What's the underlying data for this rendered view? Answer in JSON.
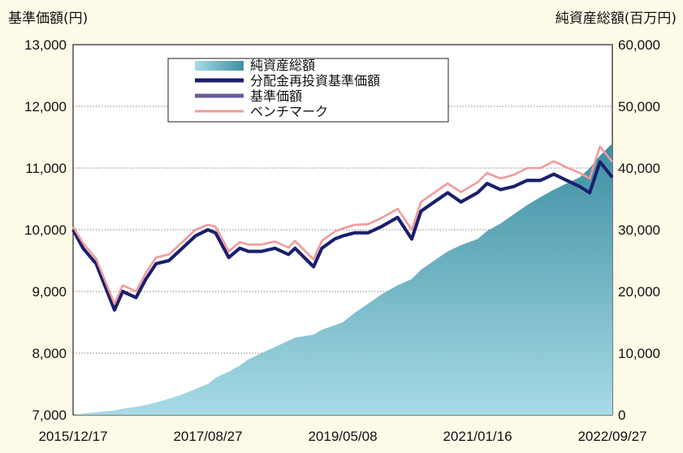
{
  "chart_data": {
    "type": "line",
    "left_axis_title": "基準価額(円)",
    "right_axis_title": "純資産総額(百万円)",
    "x_tick_labels": [
      "2015/12/17",
      "2017/08/27",
      "2019/05/08",
      "2021/01/16",
      "2022/09/27"
    ],
    "y_left": {
      "ylim": [
        7000,
        13000
      ],
      "ticks": [
        "7,000",
        "8,000",
        "9,000",
        "10,000",
        "11,000",
        "12,000",
        "13,000"
      ]
    },
    "y_right": {
      "ylim": [
        0,
        60000
      ],
      "ticks": [
        "0",
        "10,000",
        "20,000",
        "30,000",
        "40,000",
        "50,000",
        "60,000"
      ]
    },
    "grid": "horizontal dotted",
    "legend": {
      "position": "top-center",
      "entries": [
        "純資産総額",
        "分配金再投資基準価額",
        "基準価額",
        "ベンチマーク"
      ]
    },
    "colors": {
      "net_assets_top": "#3d8ea3",
      "net_assets_bottom": "#a7dbe6",
      "reinvested": "#1a1f6e",
      "nav": "#6a5a9a",
      "benchmark": "#f29a9a",
      "background": "#fdfae8",
      "plot_background": "#ffffff"
    },
    "x": [
      "2015/12/17",
      "2016/02/01",
      "2016/04/01",
      "2016/06/24",
      "2016/08/01",
      "2016/10/01",
      "2016/11/15",
      "2017/01/01",
      "2017/03/01",
      "2017/05/01",
      "2017/07/01",
      "2017/08/27",
      "2017/10/01",
      "2017/12/01",
      "2018/01/20",
      "2018/03/01",
      "2018/05/01",
      "2018/07/01",
      "2018/09/01",
      "2018/10/01",
      "2018/12/25",
      "2019/02/01",
      "2019/04/01",
      "2019/05/08",
      "2019/07/01",
      "2019/09/01",
      "2019/11/01",
      "2020/01/15",
      "2020/03/20",
      "2020/05/01",
      "2020/07/01",
      "2020/09/01",
      "2020/11/01",
      "2021/01/16",
      "2021/03/01",
      "2021/05/01",
      "2021/07/01",
      "2021/09/01",
      "2021/11/01",
      "2022/01/01",
      "2022/03/01",
      "2022/05/01",
      "2022/06/15",
      "2022/08/01",
      "2022/09/27"
    ],
    "series": [
      {
        "name": "基準価額",
        "axis": "left",
        "values": [
          10000,
          9700,
          9450,
          8700,
          9000,
          8900,
          9200,
          9450,
          9500,
          9700,
          9900,
          10000,
          9950,
          9550,
          9700,
          9650,
          9650,
          9700,
          9600,
          9700,
          9400,
          9700,
          9850,
          9900,
          9950,
          9950,
          10050,
          10200,
          9850,
          10300,
          10450,
          10600,
          10450,
          10600,
          10750,
          10650,
          10700,
          10800,
          10800,
          10900,
          10800,
          10700,
          10600,
          11100,
          10850
        ]
      },
      {
        "name": "分配金再投資基準価額",
        "axis": "left",
        "values": [
          10000,
          9700,
          9450,
          8700,
          9000,
          8900,
          9200,
          9450,
          9500,
          9700,
          9900,
          10000,
          9950,
          9550,
          9700,
          9650,
          9650,
          9700,
          9600,
          9700,
          9400,
          9700,
          9850,
          9900,
          9950,
          9950,
          10050,
          10200,
          9850,
          10300,
          10450,
          10600,
          10450,
          10600,
          10750,
          10650,
          10700,
          10800,
          10800,
          10900,
          10800,
          10700,
          10600,
          11100,
          10850
        ]
      },
      {
        "name": "ベンチマーク",
        "axis": "left",
        "values": [
          10050,
          9780,
          9530,
          8800,
          9100,
          9000,
          9300,
          9550,
          9600,
          9800,
          10000,
          10080,
          10050,
          9650,
          9800,
          9760,
          9760,
          9810,
          9710,
          9820,
          9520,
          9820,
          9970,
          10020,
          10080,
          10090,
          10190,
          10340,
          10000,
          10450,
          10600,
          10750,
          10610,
          10770,
          10920,
          10830,
          10890,
          11000,
          11000,
          11110,
          11010,
          10920,
          10830,
          11350,
          11100
        ]
      },
      {
        "name": "純資産総額",
        "axis": "right",
        "values": [
          0,
          200,
          450,
          700,
          1000,
          1300,
          1600,
          2000,
          2600,
          3300,
          4200,
          5000,
          6000,
          7000,
          8000,
          9000,
          10000,
          11000,
          12000,
          12500,
          13000,
          13800,
          14500,
          15000,
          16500,
          18000,
          19500,
          21000,
          22000,
          23500,
          25000,
          26500,
          27500,
          28500,
          29800,
          31000,
          32500,
          34000,
          35300,
          36500,
          37500,
          38500,
          40000,
          42000,
          44000
        ]
      }
    ]
  }
}
